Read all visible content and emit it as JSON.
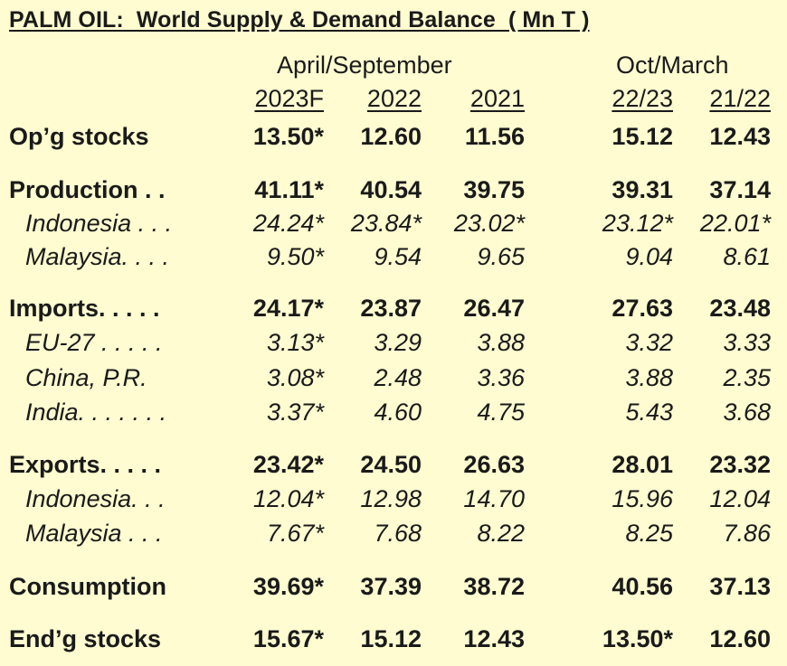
{
  "title": "PALM OIL:  World Supply & Demand Balance  ( Mn T )",
  "groups": {
    "april_september": "April/September",
    "oct_march": "Oct/March"
  },
  "columns": [
    "2023F",
    "2022",
    "2021",
    "22/23",
    "21/22"
  ],
  "rows": [
    {
      "label": "Op’g stocks",
      "values": [
        "13.50*",
        "12.60",
        "11.56",
        "15.12",
        "12.43"
      ]
    },
    {
      "label": "Production . .",
      "values": [
        "41.11*",
        "40.54",
        "39.75",
        "39.31",
        "37.14"
      ]
    },
    {
      "label": "Indonesia . . .",
      "values": [
        "24.24*",
        "23.84*",
        "23.02*",
        "23.12*",
        "22.01*"
      ]
    },
    {
      "label": "Malaysia. . . .",
      "values": [
        "9.50*",
        "9.54",
        "9.65",
        "9.04",
        "8.61"
      ]
    },
    {
      "label": "Imports. . . . .",
      "values": [
        "24.17*",
        "23.87",
        "26.47",
        "27.63",
        "23.48"
      ]
    },
    {
      "label": "EU-27 . . . . .",
      "values": [
        "3.13*",
        "3.29",
        "3.88",
        "3.32",
        "3.33"
      ]
    },
    {
      "label": "China, P.R.",
      "values": [
        "3.08*",
        "2.48",
        "3.36",
        "3.88",
        "2.35"
      ]
    },
    {
      "label": "India. . . . . . .",
      "values": [
        "3.37*",
        "4.60",
        "4.75",
        "5.43",
        "3.68"
      ]
    },
    {
      "label": "Exports. . . . .",
      "values": [
        "23.42*",
        "24.50",
        "26.63",
        "28.01",
        "23.32"
      ]
    },
    {
      "label": "Indonesia. . .",
      "values": [
        "12.04*",
        "12.98",
        "14.70",
        "15.96",
        "12.04"
      ]
    },
    {
      "label": "Malaysia . . .",
      "values": [
        "7.67*",
        "7.68",
        "8.22",
        "8.25",
        "7.86"
      ]
    },
    {
      "label": "Consumption",
      "values": [
        "39.69*",
        "37.39",
        "38.72",
        "40.56",
        "37.13"
      ]
    },
    {
      "label": "End’g stocks",
      "values": [
        "15.67*",
        "15.12",
        "12.43",
        "13.50*",
        "12.60"
      ]
    }
  ],
  "colors": {
    "background": "#fefcd0",
    "text": "#1a1a1a"
  }
}
